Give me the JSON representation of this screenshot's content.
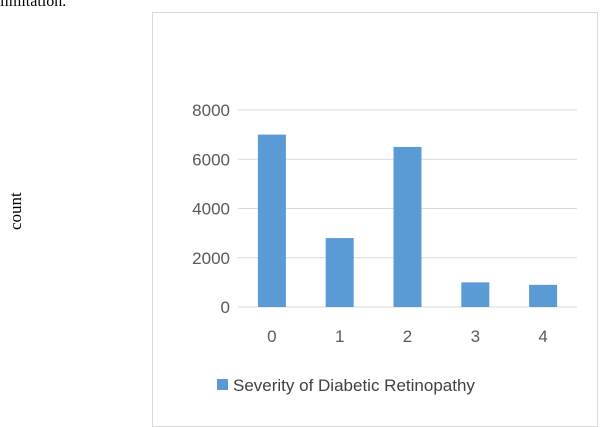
{
  "page": {
    "top_text": "limitation.",
    "side_label": "count"
  },
  "chart_data": {
    "type": "bar",
    "categories": [
      "0",
      "1",
      "2",
      "3",
      "4"
    ],
    "series": [
      {
        "name": "Severity of Diabetic Retinopathy",
        "values": [
          7000,
          2800,
          6500,
          1000,
          900
        ],
        "color": "#5b9bd5"
      }
    ],
    "ylim": [
      0,
      8000
    ],
    "yticks": [
      0,
      2000,
      4000,
      6000,
      8000
    ],
    "grid": true,
    "legend_position": "bottom",
    "colors": {
      "gridline": "#d9d9d9",
      "border": "#d9d9d9",
      "axis_text": "#595959"
    }
  }
}
